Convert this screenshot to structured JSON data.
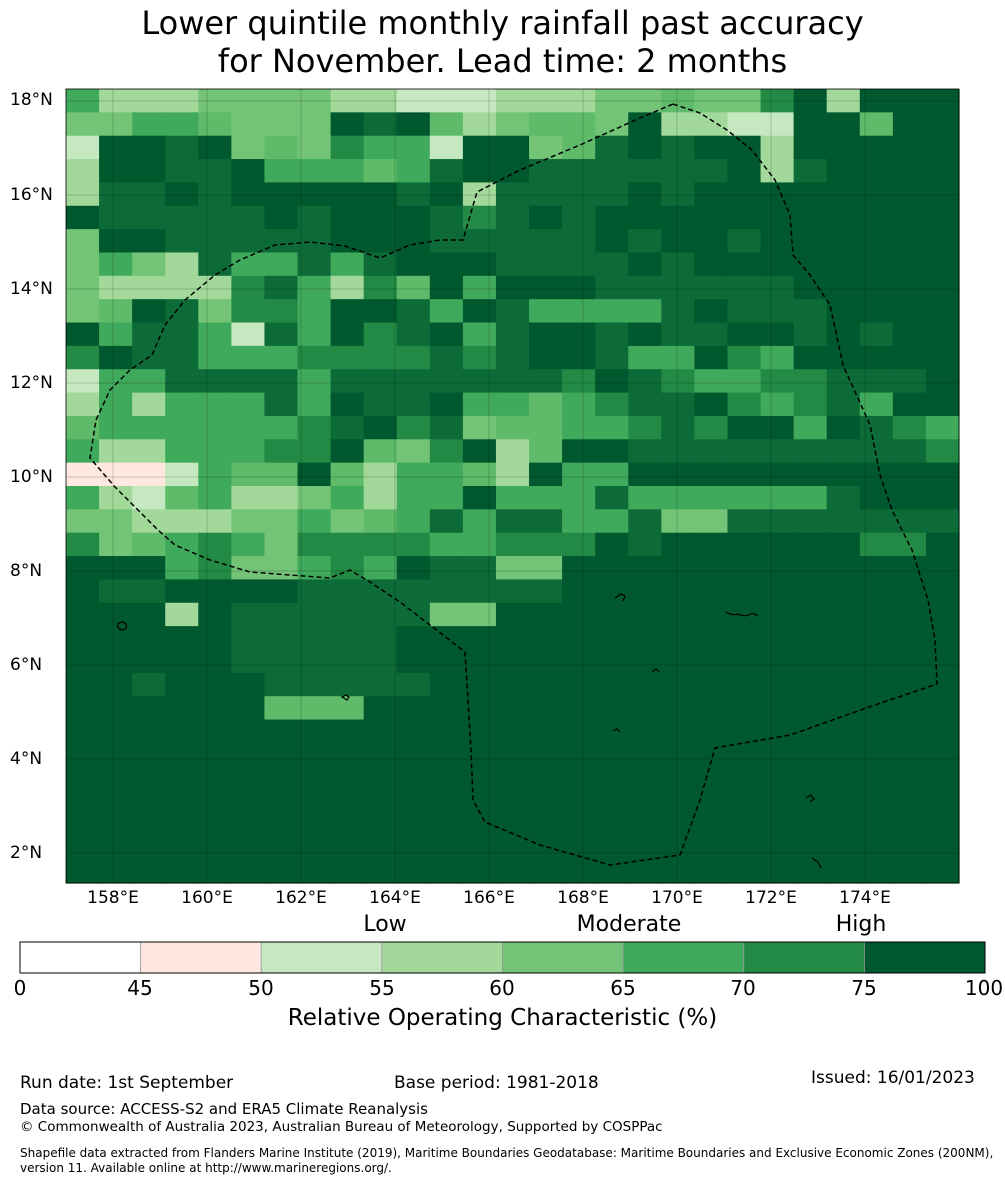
{
  "title": {
    "line1": "Lower quintile monthly rainfall past accuracy",
    "line2": "for November. Lead time: 2 months"
  },
  "map": {
    "lat_labels": [
      "18°N",
      "16°N",
      "14°N",
      "12°N",
      "10°N",
      "8°N",
      "6°N",
      "4°N",
      "2°N"
    ],
    "lon_labels": [
      "158°E",
      "160°E",
      "162°E",
      "164°E",
      "166°E",
      "168°E",
      "170°E",
      "172°E",
      "174°E"
    ],
    "eez_boundary_style": "dashed",
    "grid": [
      "EBBBCCCCBBAAABBBCCDCCFGBGGG",
      "CCEEDCCCGHGDBCDDCGBBAAGGDGG",
      "AGGHGCDCFEEAGGCDHGHGGBGGGGG",
      "BGGHHGEEEDEHGGHHHHHHGBHGGGG",
      "BHHGHGGGGGHGBHHHHGHGGGGGGGG",
      "GHHHHHGHGGGHFHGHGGGGGGGGGGG",
      "CGGHHHHHGGGHHHHHGHGGHGGGGGG",
      "CECBHEEHEHGGGHHHHGHGGGGGGGG",
      "CBBBBFHEBFDGEGGGHHHHHHGGGGG",
      "CDGHCFFEGGHEGHEEEEHGHHHGGGG",
      "GEHHEAHEGFHGEHGGHGHHGGHGHGG",
      "FGHHEEEFFFFHFHGGHEEGFEGGGGG",
      "AEEHHHHEHHHHHHHFGHFEEFFHHHG",
      "BEBEEEHEGHHGEEDEFHHGFEFHEGG",
      "DEEEEEEFHGFHCDDEEFHFGGEGHFE",
      "EBBEEEFFGDCFGBDGGHHHHHHHHHF",
      "ZZZAEDDGDBEEDBGEEGGGGGGGGGG",
      "EBADEBBCEBEEGEEEHEEEEEEHGGG",
      "CCBBBCCECDEHEHHEEHCCHHHHHHH",
      "FCDEFECFFFFEEFFFGHGGGGGGFFG",
      "GGGEFCCEFEGHHCCGGGGGGGGGGGG",
      "GHHGGGGHHHHHHHHGGGGGGGGGGGG",
      "GGGBGHHHHHHCCGGGGGGGGGGGGGG",
      "GGGGGHHHHHGGGGGGGGGGGGGGGGG",
      "GGGGGHHHHHGGGGGGGGGGGGGGGGG",
      "GGHGGGHHHHHGGGGGGGGGGGGGGGG",
      "GGGGGGDDDGGGGGGGGGGGGGGGGGG",
      "GGGGGGGGGGGGGGGGGGGGGGGGGGG",
      "GGGGGGGGGGGGGGGGGGGGGGGGGGG",
      "GGGGGGGGGGGGGGGGGGGGGGGGGGG",
      "GGGGGGGGGGGGGGGGGGGGGGGGGGG",
      "GGGGGGGGGGGGGGGGGGGGGGGGGGG",
      "GGGGGGGGGGGGGGGGGGGGGGGGGGG",
      "GGGGGGGGGGGGGGGGGGGGGGGGGGG"
    ],
    "grid_legend": {
      "Z": "45-50",
      "A": "50-55",
      "B": "55-60",
      "C": "55-60",
      "D": "60-65",
      "E": "65-70",
      "F": "70-75",
      "G": "75-100",
      "H": "70-75"
    }
  },
  "categories": [
    "Low",
    "Moderate",
    "High"
  ],
  "colorbar": {
    "ticks": [
      "0",
      "45",
      "50",
      "55",
      "60",
      "65",
      "70",
      "75",
      "100"
    ],
    "colors": [
      "#ffffff",
      "#fee8e0",
      "#c6e8c0",
      "#a2d99b",
      "#73c476",
      "#40aa5c",
      "#228a45",
      "#00582e"
    ],
    "title": "Relative Operating Characteristic (%)"
  },
  "footer": {
    "run_date": "Run date: 1st September",
    "base_period": "Base period: 1981-2018",
    "issued": "Issued: 16/01/2023",
    "data_source": "Data source: ACCESS-S2 and ERA5 Climate Reanalysis",
    "copyright": "© Commonwealth of Australia 2023, Australian Bureau of Meteorology, Supported by COSPPac",
    "shapefile_line1": "Shapefile data extracted from Flanders Marine Institute (2019), Maritime Boundaries Geodatabase: Maritime Boundaries and Exclusive Economic Zones (200NM),",
    "shapefile_line2": "version 11. Available online at http://www.marineregions.org/."
  }
}
